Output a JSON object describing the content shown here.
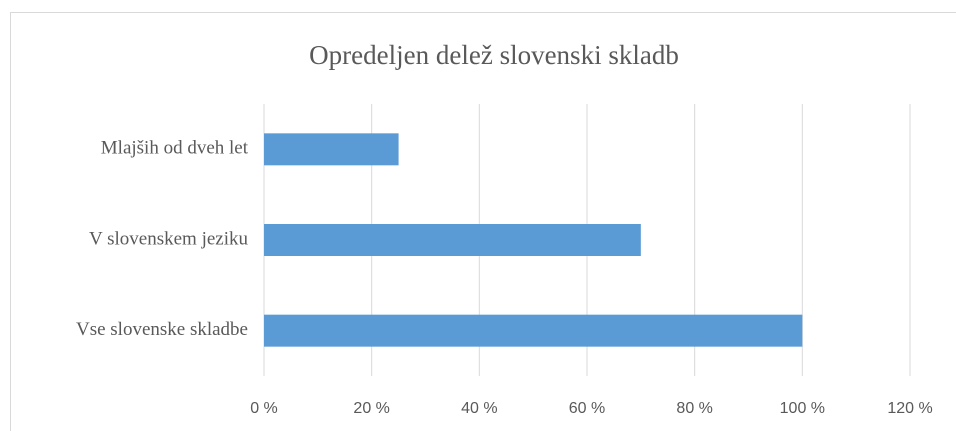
{
  "chart_data": {
    "type": "hbar",
    "title": "Opredeljen delež slovenski skladb",
    "categories": [
      "Mlajših od dveh let",
      "V slovenskem jeziku",
      "Vse slovenske skladbe"
    ],
    "values": [
      25,
      70,
      100
    ],
    "color": "#5b9bd5",
    "xlim": [
      0,
      120
    ],
    "xticks": [
      {
        "value": 0,
        "label": "0 %"
      },
      {
        "value": 20,
        "label": "20 %"
      },
      {
        "value": 40,
        "label": "40 %"
      },
      {
        "value": 60,
        "label": "60 %"
      },
      {
        "value": 80,
        "label": "80 %"
      },
      {
        "value": 100,
        "label": "100 %"
      },
      {
        "value": 120,
        "label": "120 %"
      }
    ],
    "grid": true
  }
}
